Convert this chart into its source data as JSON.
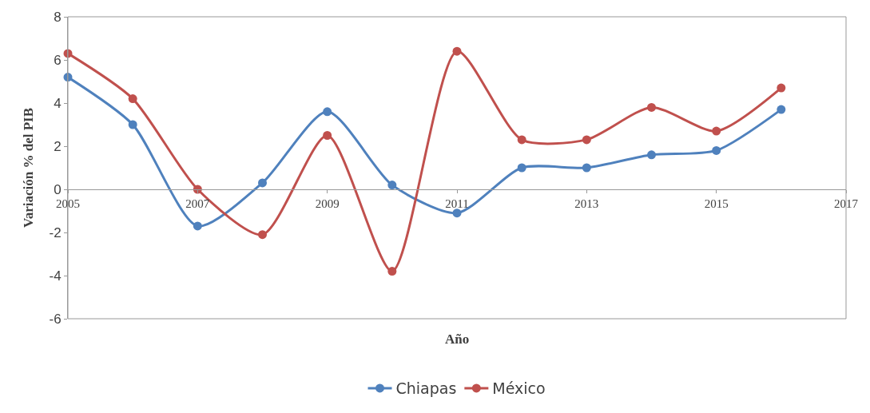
{
  "chart_data": {
    "type": "line",
    "xlabel": "Año",
    "ylabel": "Variación % del PIB",
    "x": [
      2005,
      2006,
      2007,
      2008,
      2009,
      2010,
      2011,
      2012,
      2013,
      2014,
      2015,
      2016
    ],
    "series": [
      {
        "name": "Chiapas",
        "color": "#4f81bd",
        "values": [
          5.2,
          3.0,
          -1.7,
          0.3,
          3.6,
          0.2,
          -1.1,
          1.0,
          1.0,
          1.6,
          1.8,
          3.7
        ]
      },
      {
        "name": "México",
        "color": "#c0504d",
        "values": [
          6.3,
          4.2,
          0.0,
          -2.1,
          2.5,
          -3.8,
          6.4,
          2.3,
          2.3,
          3.8,
          2.7,
          4.7
        ]
      }
    ],
    "xlim": [
      2005,
      2017
    ],
    "xticks": [
      2005,
      2007,
      2009,
      2011,
      2013,
      2015,
      2017
    ],
    "ylim": [
      -6,
      8
    ],
    "yticks": [
      -6,
      -4,
      -2,
      0,
      2,
      4,
      6,
      8
    ],
    "grid": false,
    "legend": "bottom",
    "marker": "circle",
    "line_style": "solid"
  }
}
